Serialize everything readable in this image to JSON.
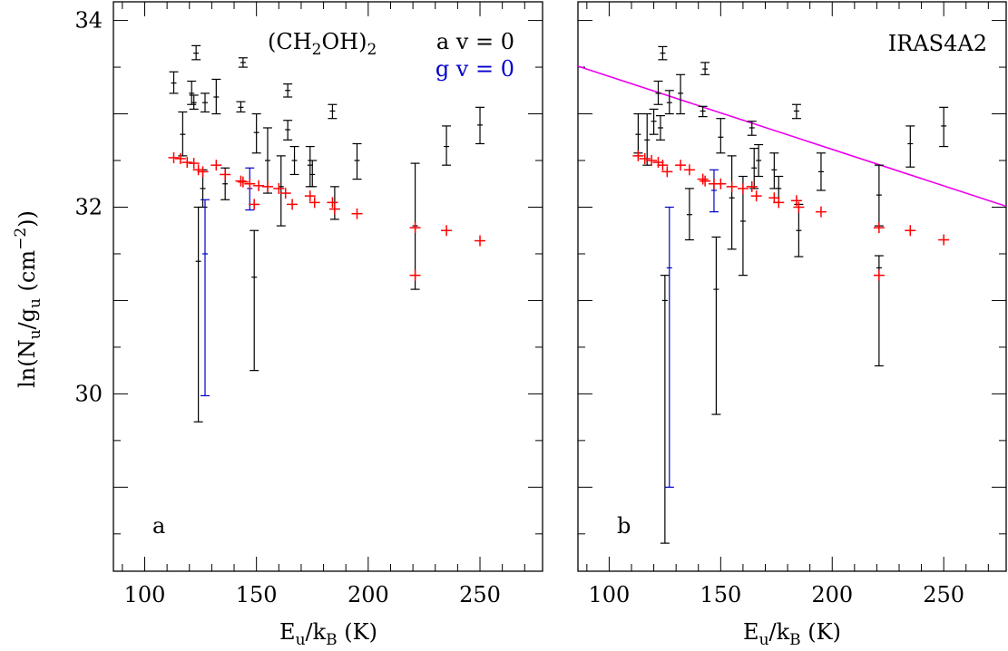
{
  "figure": {
    "ylabel_main": "ln(N",
    "ylabel_sub1": "u",
    "ylabel_mid": "/g",
    "ylabel_sub2": "u",
    "ylabel_units": " (cm",
    "ylabel_exp": "−2",
    "ylabel_close": "))",
    "xlabel_main": "E",
    "xlabel_sub1": "u",
    "xlabel_mid": "/k",
    "xlabel_sub2": "B",
    "xlabel_units": " (K)"
  },
  "chart_data": [
    {
      "type": "scatter",
      "panel_label": "a",
      "title": "",
      "molecule": {
        "prefix": "(CH",
        "sub": "2",
        "suffix": "OH)",
        "sub2": "2"
      },
      "legend": [
        {
          "name": "a v = 0",
          "color": "#000000"
        },
        {
          "name": "g v = 0",
          "color": "#0000cc"
        }
      ],
      "xlim": [
        86,
        278
      ],
      "ylim": [
        28.1,
        34.2
      ],
      "xticks": [
        100,
        150,
        200,
        250
      ],
      "yticks": [
        30,
        32,
        34
      ],
      "grid": false,
      "series": [
        {
          "name": "a v = 0",
          "color": "#000000",
          "points": [
            {
              "x": 113,
              "y": 33.33,
              "lo": 33.22,
              "hi": 33.45
            },
            {
              "x": 117,
              "y": 32.78,
              "lo": 32.55,
              "hi": 33.02
            },
            {
              "x": 121,
              "y": 33.22,
              "lo": 33.1,
              "hi": 33.35
            },
            {
              "x": 122,
              "y": 33.12,
              "lo": 33.05,
              "hi": 33.2
            },
            {
              "x": 123,
              "y": 33.65,
              "lo": 33.58,
              "hi": 33.73
            },
            {
              "x": 124,
              "y": 31.42,
              "lo": 29.7,
              "hi": 32.0
            },
            {
              "x": 126,
              "y": 32.2,
              "lo": 32.0,
              "hi": 32.4
            },
            {
              "x": 127,
              "y": 33.12,
              "lo": 33.02,
              "hi": 33.22
            },
            {
              "x": 132,
              "y": 33.18,
              "lo": 33.0,
              "hi": 33.37
            },
            {
              "x": 136,
              "y": 32.25,
              "lo": 32.08,
              "hi": 32.42
            },
            {
              "x": 143,
              "y": 33.07,
              "lo": 33.02,
              "hi": 33.13
            },
            {
              "x": 144,
              "y": 33.55,
              "lo": 33.5,
              "hi": 33.6
            },
            {
              "x": 149,
              "y": 31.25,
              "lo": 30.25,
              "hi": 31.75
            },
            {
              "x": 150,
              "y": 32.8,
              "lo": 32.58,
              "hi": 33.0
            },
            {
              "x": 155,
              "y": 32.5,
              "lo": 32.15,
              "hi": 32.85
            },
            {
              "x": 161,
              "y": 32.22,
              "lo": 31.8,
              "hi": 32.55
            },
            {
              "x": 164,
              "y": 33.25,
              "lo": 33.18,
              "hi": 33.32
            },
            {
              "x": 164,
              "y": 32.83,
              "lo": 32.72,
              "hi": 32.93
            },
            {
              "x": 167,
              "y": 32.5,
              "lo": 32.35,
              "hi": 32.65
            },
            {
              "x": 174,
              "y": 32.45,
              "lo": 32.22,
              "hi": 32.65
            },
            {
              "x": 175,
              "y": 32.35,
              "lo": 32.22,
              "hi": 32.5
            },
            {
              "x": 184,
              "y": 33.03,
              "lo": 32.95,
              "hi": 33.1
            },
            {
              "x": 185,
              "y": 32.05,
              "lo": 31.87,
              "hi": 32.22
            },
            {
              "x": 195,
              "y": 32.5,
              "lo": 32.3,
              "hi": 32.68
            },
            {
              "x": 221,
              "y": 31.8,
              "lo": 31.12,
              "hi": 32.47
            },
            {
              "x": 235,
              "y": 32.65,
              "lo": 32.45,
              "hi": 32.87
            },
            {
              "x": 250,
              "y": 32.88,
              "lo": 32.68,
              "hi": 33.07
            }
          ]
        },
        {
          "name": "g v = 0",
          "color": "#0000cc",
          "points": [
            {
              "x": 127,
              "y": 31.5,
              "lo": 29.98,
              "hi": 32.08
            },
            {
              "x": 147,
              "y": 32.2,
              "lo": 31.97,
              "hi": 32.42
            }
          ]
        },
        {
          "name": "",
          "color": "#ff0000",
          "marker": "cross",
          "points": [
            {
              "x": 113,
              "y": 32.53
            },
            {
              "x": 116,
              "y": 32.52
            },
            {
              "x": 119,
              "y": 32.48
            },
            {
              "x": 122,
              "y": 32.47
            },
            {
              "x": 124,
              "y": 32.4
            },
            {
              "x": 126,
              "y": 32.38
            },
            {
              "x": 132,
              "y": 32.45
            },
            {
              "x": 136,
              "y": 32.35
            },
            {
              "x": 143,
              "y": 32.28
            },
            {
              "x": 144,
              "y": 32.27
            },
            {
              "x": 147,
              "y": 32.25
            },
            {
              "x": 149,
              "y": 32.03
            },
            {
              "x": 151,
              "y": 32.23
            },
            {
              "x": 155,
              "y": 32.22
            },
            {
              "x": 160,
              "y": 32.2
            },
            {
              "x": 163,
              "y": 32.15
            },
            {
              "x": 166,
              "y": 32.03
            },
            {
              "x": 174,
              "y": 32.12
            },
            {
              "x": 176,
              "y": 32.05
            },
            {
              "x": 184,
              "y": 32.05
            },
            {
              "x": 185,
              "y": 31.98
            },
            {
              "x": 195,
              "y": 31.93
            },
            {
              "x": 221,
              "y": 31.78
            },
            {
              "x": 221,
              "y": 31.27
            },
            {
              "x": 235,
              "y": 31.75
            },
            {
              "x": 250,
              "y": 31.64
            }
          ]
        }
      ]
    },
    {
      "type": "scatter",
      "panel_label": "b",
      "title": "IRAS4A2",
      "xlim": [
        86,
        278
      ],
      "ylim": [
        28.1,
        34.2
      ],
      "xticks": [
        100,
        150,
        200,
        250
      ],
      "yticks": [
        30,
        32,
        34
      ],
      "grid": false,
      "fit_line": {
        "color": "#ee00ee",
        "x": [
          86,
          278
        ],
        "y": [
          33.51,
          32.01
        ]
      },
      "series": [
        {
          "name": "a v = 0",
          "color": "#000000",
          "points": [
            {
              "x": 113,
              "y": 32.78,
              "lo": 32.58,
              "hi": 33.0
            },
            {
              "x": 117,
              "y": 32.72,
              "lo": 32.45,
              "hi": 33.0
            },
            {
              "x": 120,
              "y": 32.92,
              "lo": 32.78,
              "hi": 33.05
            },
            {
              "x": 122,
              "y": 33.22,
              "lo": 33.1,
              "hi": 33.35
            },
            {
              "x": 123,
              "y": 32.85,
              "lo": 32.72,
              "hi": 32.98
            },
            {
              "x": 124,
              "y": 33.65,
              "lo": 33.58,
              "hi": 33.72
            },
            {
              "x": 125,
              "y": 31.0,
              "lo": 28.4,
              "hi": 31.27
            },
            {
              "x": 127,
              "y": 33.12,
              "lo": 33.0,
              "hi": 33.25
            },
            {
              "x": 132,
              "y": 33.22,
              "lo": 33.0,
              "hi": 33.42
            },
            {
              "x": 136,
              "y": 31.92,
              "lo": 31.65,
              "hi": 32.2
            },
            {
              "x": 142,
              "y": 33.03,
              "lo": 32.97,
              "hi": 33.08
            },
            {
              "x": 143,
              "y": 33.48,
              "lo": 33.42,
              "hi": 33.55
            },
            {
              "x": 148,
              "y": 31.12,
              "lo": 29.78,
              "hi": 31.68
            },
            {
              "x": 150,
              "y": 32.75,
              "lo": 32.58,
              "hi": 32.95
            },
            {
              "x": 155,
              "y": 32.1,
              "lo": 31.55,
              "hi": 32.55
            },
            {
              "x": 160,
              "y": 31.85,
              "lo": 31.27,
              "hi": 32.33
            },
            {
              "x": 164,
              "y": 32.85,
              "lo": 32.77,
              "hi": 32.92
            },
            {
              "x": 165,
              "y": 32.42,
              "lo": 32.2,
              "hi": 32.63
            },
            {
              "x": 167,
              "y": 32.5,
              "lo": 32.33,
              "hi": 32.67
            },
            {
              "x": 174,
              "y": 32.4,
              "lo": 32.2,
              "hi": 32.58
            },
            {
              "x": 176,
              "y": 32.2,
              "lo": 32.05,
              "hi": 32.33
            },
            {
              "x": 184,
              "y": 33.03,
              "lo": 32.95,
              "hi": 33.1
            },
            {
              "x": 185,
              "y": 31.75,
              "lo": 31.47,
              "hi": 32.03
            },
            {
              "x": 195,
              "y": 32.38,
              "lo": 32.18,
              "hi": 32.58
            },
            {
              "x": 221,
              "y": 32.13,
              "lo": 31.8,
              "hi": 32.45
            },
            {
              "x": 221,
              "y": 31.35,
              "lo": 30.3,
              "hi": 31.48
            },
            {
              "x": 235,
              "y": 32.68,
              "lo": 32.43,
              "hi": 32.87
            },
            {
              "x": 250,
              "y": 32.87,
              "lo": 32.65,
              "hi": 33.07
            }
          ]
        },
        {
          "name": "g v = 0",
          "color": "#0000cc",
          "points": [
            {
              "x": 127,
              "y": 31.35,
              "lo": 29.0,
              "hi": 32.0
            },
            {
              "x": 147,
              "y": 32.18,
              "lo": 31.95,
              "hi": 32.4
            }
          ]
        },
        {
          "name": "",
          "color": "#ff0000",
          "marker": "cross",
          "points": [
            {
              "x": 113,
              "y": 32.55
            },
            {
              "x": 116,
              "y": 32.52
            },
            {
              "x": 119,
              "y": 32.5
            },
            {
              "x": 122,
              "y": 32.48
            },
            {
              "x": 124,
              "y": 32.45
            },
            {
              "x": 126,
              "y": 32.38
            },
            {
              "x": 132,
              "y": 32.45
            },
            {
              "x": 136,
              "y": 32.4
            },
            {
              "x": 142,
              "y": 32.3
            },
            {
              "x": 143,
              "y": 32.28
            },
            {
              "x": 147,
              "y": 32.25
            },
            {
              "x": 150,
              "y": 32.25
            },
            {
              "x": 155,
              "y": 32.22
            },
            {
              "x": 160,
              "y": 32.2
            },
            {
              "x": 164,
              "y": 32.22
            },
            {
              "x": 166,
              "y": 32.12
            },
            {
              "x": 174,
              "y": 32.1
            },
            {
              "x": 176,
              "y": 32.05
            },
            {
              "x": 184,
              "y": 32.07
            },
            {
              "x": 185,
              "y": 32.0
            },
            {
              "x": 195,
              "y": 31.95
            },
            {
              "x": 221,
              "y": 31.78
            },
            {
              "x": 221,
              "y": 31.27
            },
            {
              "x": 235,
              "y": 31.75
            },
            {
              "x": 250,
              "y": 31.65
            }
          ]
        }
      ]
    }
  ]
}
